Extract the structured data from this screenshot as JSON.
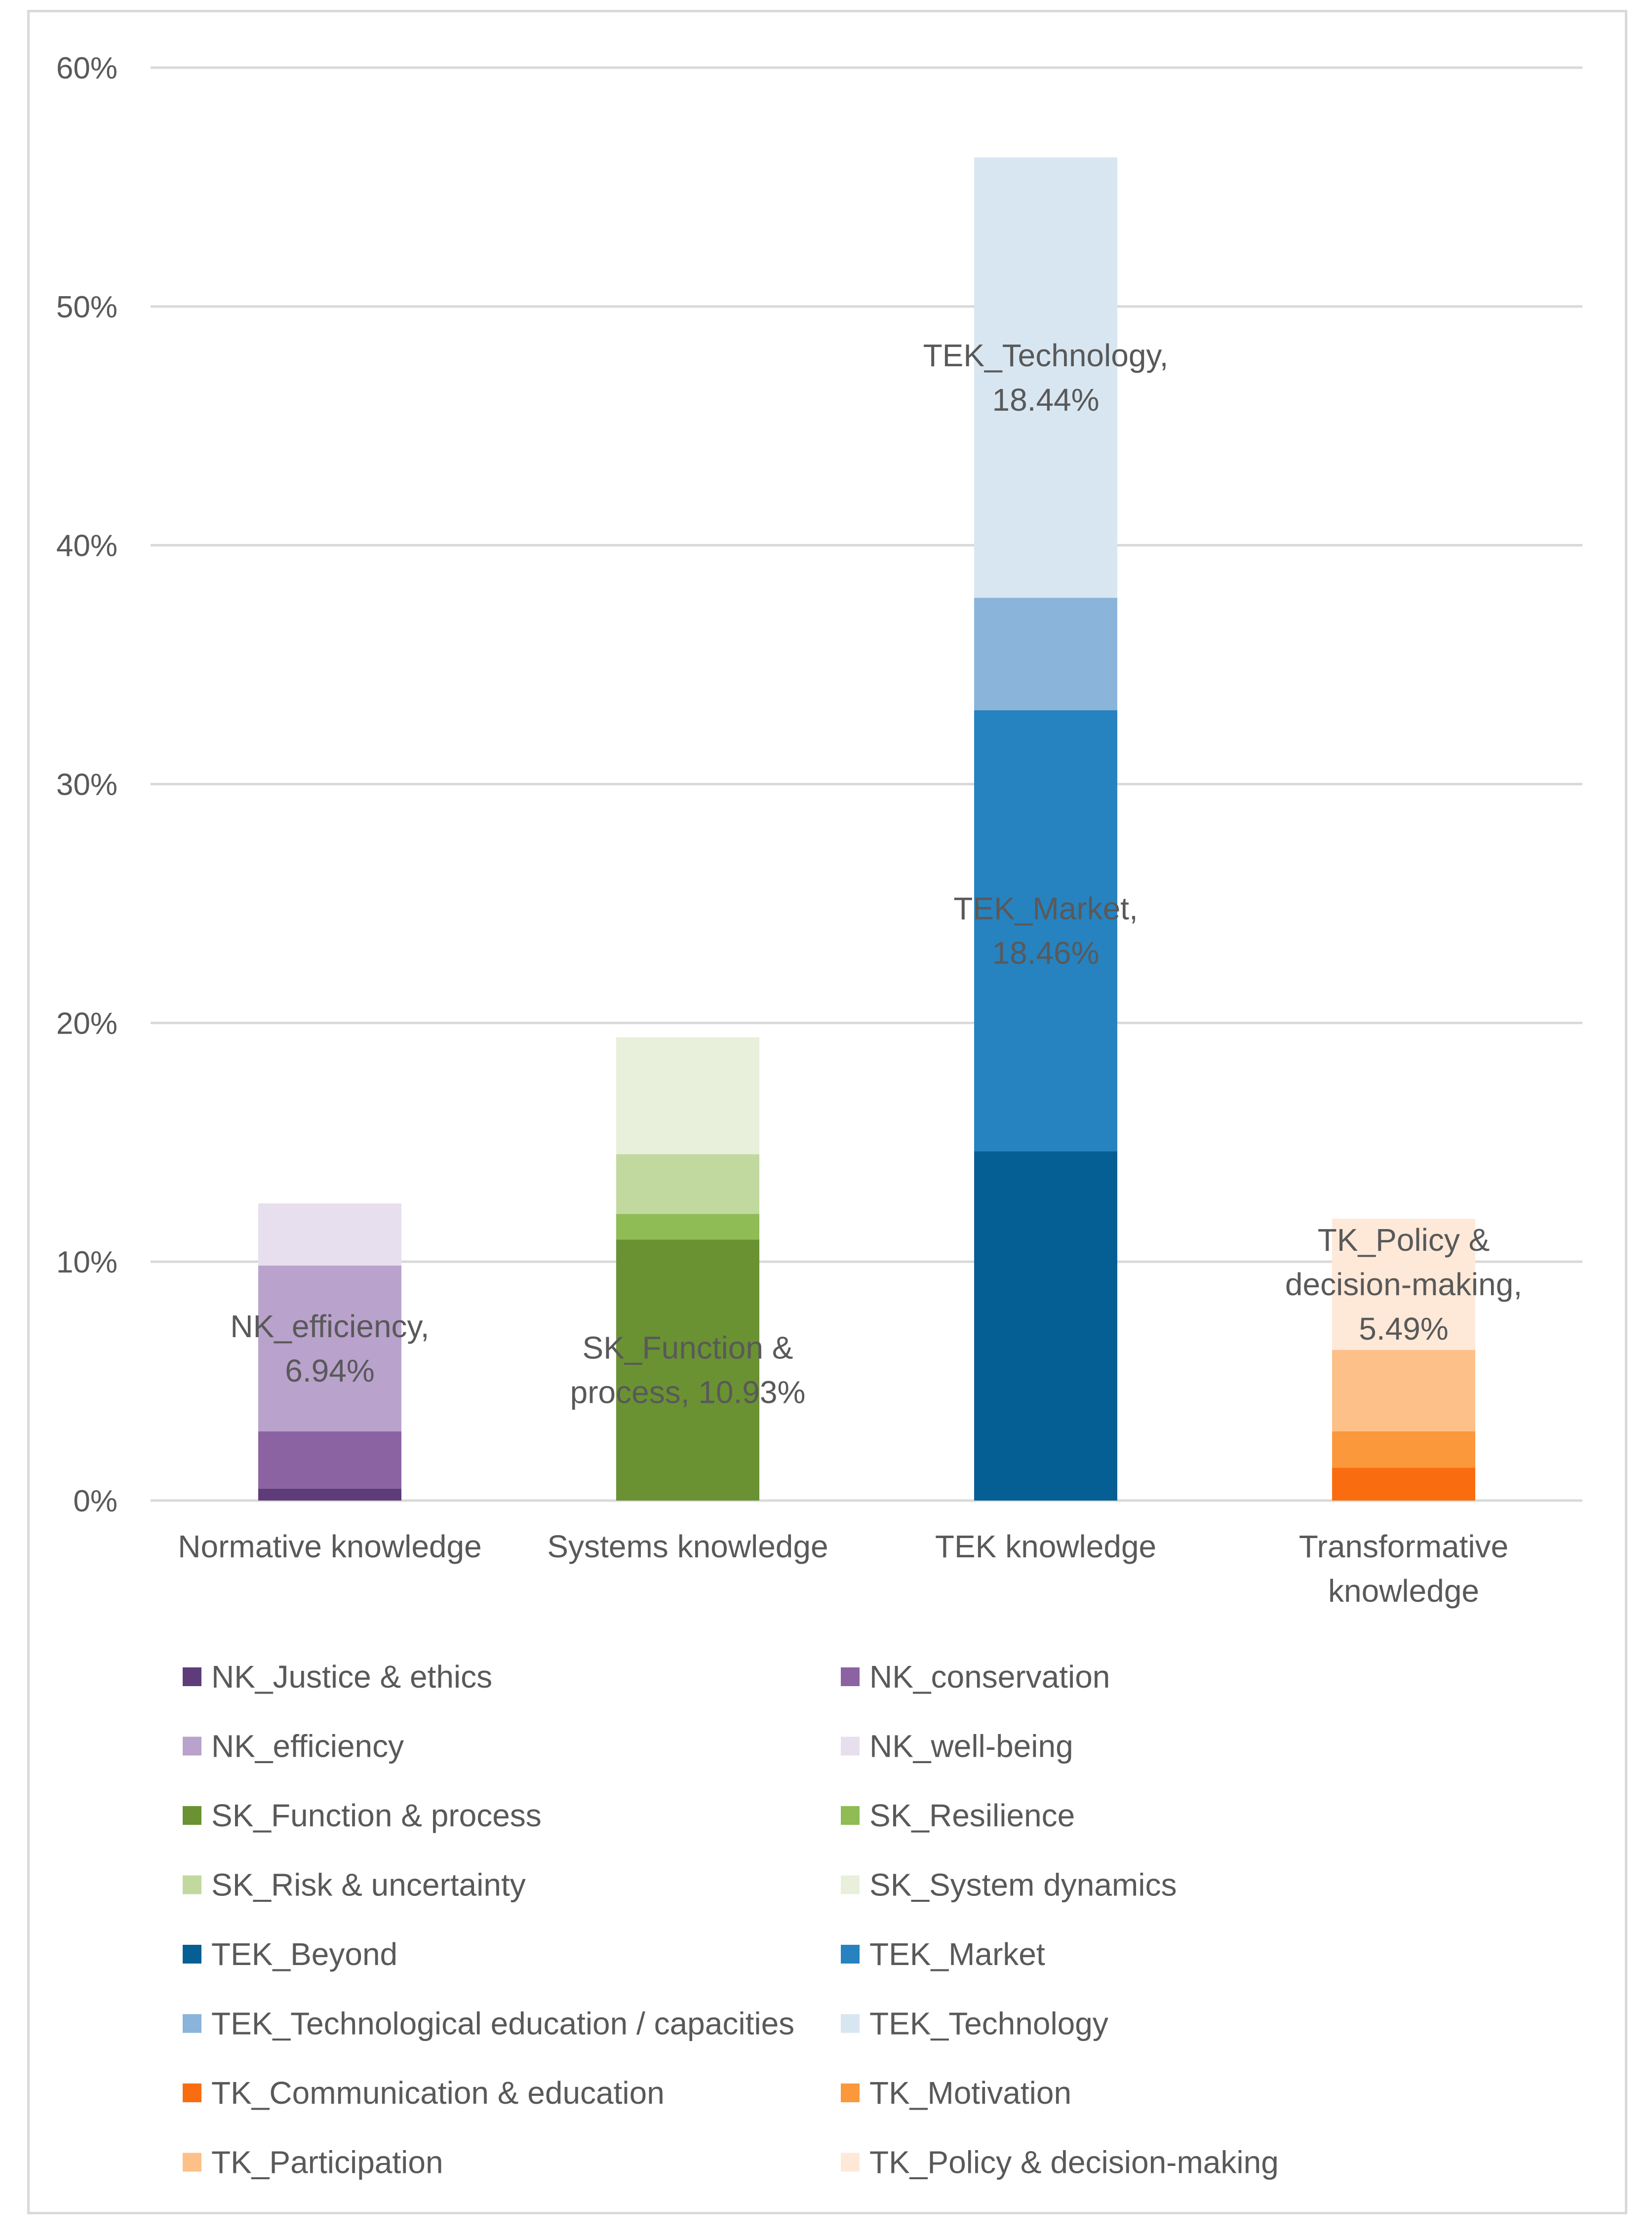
{
  "chart_data": {
    "type": "bar",
    "stacked": true,
    "title": "",
    "xlabel": "",
    "ylabel": "",
    "ylim": [
      0,
      0.6
    ],
    "yticks": [
      "0%",
      "10%",
      "20%",
      "30%",
      "40%",
      "50%",
      "60%"
    ],
    "grid": true,
    "legend_position": "bottom",
    "categories": [
      {
        "lines": [
          "Normative knowledge"
        ]
      },
      {
        "lines": [
          "Systems knowledge"
        ]
      },
      {
        "lines": [
          "TEK knowledge"
        ]
      },
      {
        "lines": [
          "Transformative",
          "knowledge"
        ]
      }
    ],
    "series": [
      {
        "name": "NK_Justice & ethics",
        "color": "#5e3c79",
        "values": [
          0.005,
          0,
          0,
          0
        ]
      },
      {
        "name": "NK_conservation",
        "color": "#8b63a3",
        "values": [
          0.024,
          0,
          0,
          0
        ]
      },
      {
        "name": "NK_efficiency",
        "color": "#b9a2cc",
        "values": [
          0.0694,
          0,
          0,
          0
        ]
      },
      {
        "name": "NK_well-being",
        "color": "#e7dfed",
        "values": [
          0.026,
          0,
          0,
          0
        ]
      },
      {
        "name": "SK_Function & process",
        "color": "#6a9232",
        "values": [
          0,
          0.1093,
          0,
          0
        ]
      },
      {
        "name": "SK_Resilience",
        "color": "#8fbc54",
        "values": [
          0,
          0.0107,
          0,
          0
        ]
      },
      {
        "name": "SK_Risk & uncertainty",
        "color": "#c1d99e",
        "values": [
          0,
          0.025,
          0,
          0
        ]
      },
      {
        "name": "SK_System dynamics",
        "color": "#e8f0dc",
        "values": [
          0,
          0.049,
          0,
          0
        ]
      },
      {
        "name": "TEK_Beyond",
        "color": "#065f94",
        "values": [
          0,
          0,
          0.1463,
          0
        ]
      },
      {
        "name": "TEK_Market",
        "color": "#2683c0",
        "values": [
          0,
          0,
          0.1846,
          0
        ]
      },
      {
        "name": "TEK_Technological education / capacities",
        "color": "#8ab4da",
        "values": [
          0,
          0,
          0.0471,
          0
        ]
      },
      {
        "name": "TEK_Technology",
        "color": "#d8e6f2",
        "values": [
          0,
          0,
          0.1844,
          0
        ]
      },
      {
        "name": "TK_Communication & education",
        "color": "#f96d10",
        "values": [
          0,
          0,
          0,
          0.0138
        ]
      },
      {
        "name": "TK_Motivation",
        "color": "#fb983b",
        "values": [
          0,
          0,
          0,
          0.0152
        ]
      },
      {
        "name": "TK_Participation",
        "color": "#fdc089",
        "values": [
          0,
          0,
          0,
          0.0341
        ]
      },
      {
        "name": "TK_Policy & decision-making",
        "color": "#fee9d9",
        "values": [
          0,
          0,
          0,
          0.0549
        ]
      }
    ],
    "data_labels": [
      {
        "series": 2,
        "category": 0,
        "lines": [
          "NK_efficiency,",
          "6.94%"
        ]
      },
      {
        "series": 4,
        "category": 1,
        "lines": [
          "SK_Function &",
          "process, 10.93%"
        ]
      },
      {
        "series": 9,
        "category": 2,
        "lines": [
          "TEK_Market,",
          "18.46%"
        ]
      },
      {
        "series": 11,
        "category": 2,
        "lines": [
          "TEK_Technology,",
          "18.44%"
        ]
      },
      {
        "series": 15,
        "category": 3,
        "lines": [
          "TK_Policy &",
          "decision-making,",
          "5.49%"
        ]
      }
    ],
    "colors": {
      "gridline": "#d9d9d9",
      "axis_text": "#595959"
    }
  }
}
